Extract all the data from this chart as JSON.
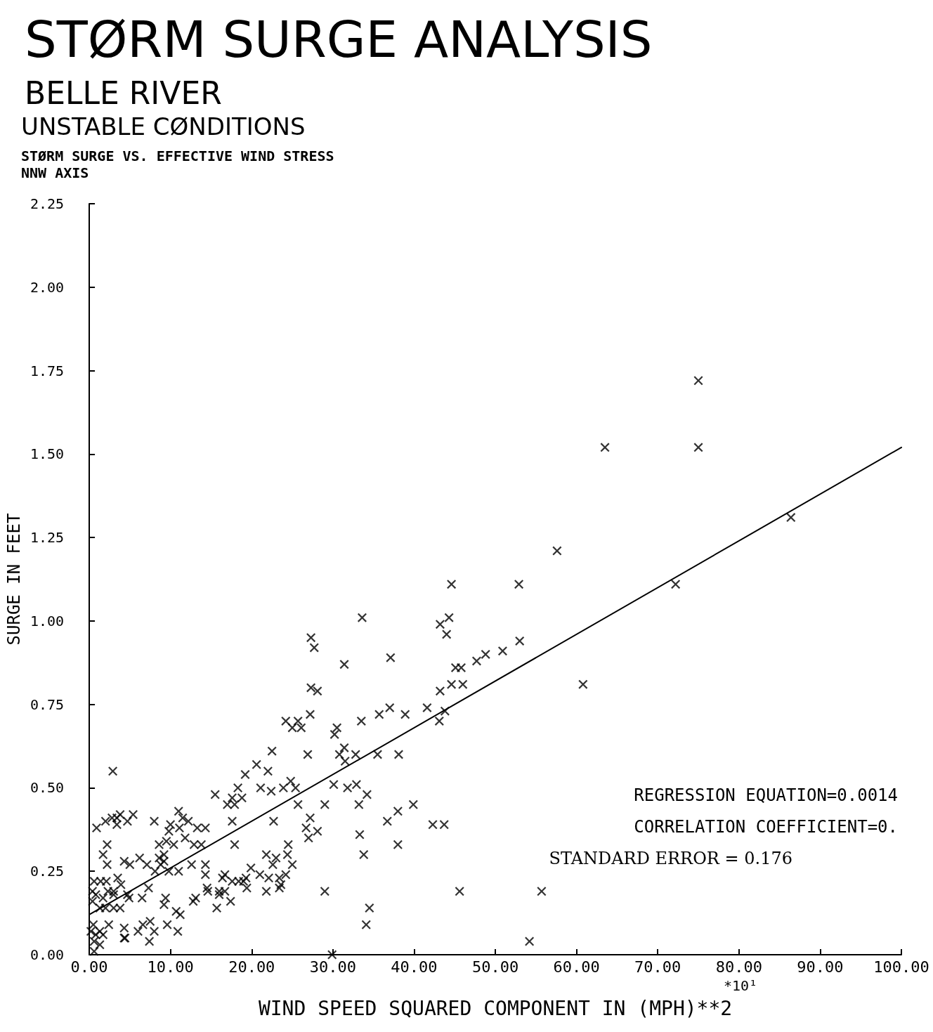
{
  "chart_data": {
    "type": "scatter",
    "title": "STØRM SURGE ANALYSIS",
    "subtitle": "BELLE RIVER",
    "xlabel": "WIND SPEED SQUARED COMPONENT IN (MPH)**2",
    "ylabel": "SURGE IN FEET",
    "annotations": [
      "UNSTABLE CØNDITIONS",
      "STØRM SURGE VS. EFFECTIVE WIND STRESS",
      "NNW AXIS",
      "REGRESSION EQUATION=0.0014",
      "CORRELATION COEFFICIENT=0.",
      "STANDARD ERROR = 0.176",
      "*10¹"
    ],
    "xlim": [
      0,
      100
    ],
    "ylim": [
      0,
      2.25
    ],
    "xticks": [
      {
        "value": 0,
        "label": "0.00"
      },
      {
        "value": 10,
        "label": "10.00"
      },
      {
        "value": 20,
        "label": "20.00"
      },
      {
        "value": 30,
        "label": "30.00"
      },
      {
        "value": 40,
        "label": "40.00"
      },
      {
        "value": 50,
        "label": "50.00"
      },
      {
        "value": 60,
        "label": "60.00"
      },
      {
        "value": 70,
        "label": "70.00"
      },
      {
        "value": 80,
        "label": "80.00"
      },
      {
        "value": 90,
        "label": "90.00"
      },
      {
        "value": 100,
        "label": "100.00"
      }
    ],
    "yticks": [
      {
        "value": 0,
        "label": "0.00"
      },
      {
        "value": 0.25,
        "label": "0.25"
      },
      {
        "value": 0.5,
        "label": "0.50"
      },
      {
        "value": 0.75,
        "label": "0.75"
      },
      {
        "value": 1,
        "label": "1.00"
      },
      {
        "value": 1.25,
        "label": "1.25"
      },
      {
        "value": 1.5,
        "label": "1.50"
      },
      {
        "value": 1.75,
        "label": "1.75"
      },
      {
        "value": 2,
        "label": "2.00"
      },
      {
        "value": 2.25,
        "label": "2.25"
      }
    ],
    "grid": false,
    "series": [
      {
        "color": "#000000",
        "marker": "cross",
        "x": [
          86.4,
          75.0,
          75.0,
          72.2,
          63.5,
          60.8,
          57.6,
          55.7,
          52.9,
          53.0,
          54.2,
          50.9,
          48.8,
          47.7,
          45.8,
          45.1,
          46.0,
          44.6,
          43.2,
          44.3,
          43.2,
          44.0,
          44.6,
          43.8,
          43.1,
          41.6,
          38.9,
          37.0,
          35.7,
          33.5,
          37.1,
          33.6,
          31.4,
          27.3,
          27.7,
          27.3,
          28.1,
          27.2,
          38.1,
          35.5,
          32.8,
          31.4,
          30.8,
          31.5,
          30.5,
          30.2,
          26.9,
          32.9,
          31.8,
          30.1,
          34.2,
          39.9,
          43.7,
          42.3,
          38.0,
          38.0,
          36.7,
          33.2,
          33.3,
          33.8,
          34.5,
          34.1,
          45.6,
          29.0,
          29.0,
          28.1,
          27.2,
          26.7,
          27.0,
          25.7,
          26.1,
          25.0,
          24.2,
          24.8,
          25.4,
          23.9,
          24.5,
          24.4,
          25.0,
          24.2,
          23.6,
          22.4,
          21.1,
          22.0,
          20.6,
          19.2,
          18.3,
          18.8,
          17.9,
          17.6,
          17.0,
          15.5,
          22.7,
          17.6,
          23.4,
          23.4,
          23.0,
          22.6,
          21.8,
          22.1,
          21.8,
          21.0,
          19.9,
          19.3,
          19.4,
          19.0,
          18.4,
          17.6,
          17.9,
          16.7,
          16.4,
          16.7,
          16.0,
          16.0,
          17.4,
          15.7,
          14.5,
          14.6,
          13.1,
          12.8,
          14.3,
          14.3,
          12.6,
          14.3,
          13.3,
          13.8,
          12.9,
          12.2,
          11.5,
          11.0,
          11.8,
          11.1,
          10.0,
          9.8,
          10.4,
          9.5,
          8.6,
          9.2,
          9.2,
          8.6,
          8.8,
          11.0,
          9.8,
          8.1,
          7.1,
          6.2,
          5.0,
          4.3,
          8.0,
          7.3,
          6.5,
          9.4,
          9.2,
          10.7,
          11.2,
          10.9,
          9.6,
          8.0,
          7.4,
          7.5,
          6.6,
          6.0,
          4.3,
          4.4,
          5.4,
          4.7,
          3.8,
          3.4,
          3.4,
          2.8,
          2.0,
          0.9,
          2.9,
          2.2,
          1.7,
          2.2,
          3.5,
          3.9,
          3.0,
          3.0,
          2.1,
          2.3,
          1.7,
          1.4,
          0.6,
          4.7,
          4.9,
          3.8,
          3.0,
          2.0,
          1.3,
          0.8,
          0.4,
          0.4,
          2.4,
          0.5,
          1.3,
          0.8,
          1.3,
          0.2,
          0.6,
          0.6,
          1.7,
          4.3,
          29.9,
          25.7,
          22.5
        ],
        "values": [
          1.31,
          1.72,
          1.52,
          1.11,
          1.52,
          0.81,
          1.21,
          0.19,
          1.11,
          0.94,
          0.04,
          0.91,
          0.9,
          0.88,
          0.86,
          0.86,
          0.81,
          0.81,
          0.79,
          1.01,
          0.99,
          0.96,
          1.11,
          0.73,
          0.7,
          0.74,
          0.72,
          0.74,
          0.72,
          0.7,
          0.89,
          1.01,
          0.87,
          0.95,
          0.92,
          0.8,
          0.79,
          0.72,
          0.6,
          0.6,
          0.6,
          0.62,
          0.6,
          0.58,
          0.68,
          0.66,
          0.6,
          0.51,
          0.5,
          0.51,
          0.48,
          0.45,
          0.39,
          0.39,
          0.43,
          0.33,
          0.4,
          0.45,
          0.36,
          0.3,
          0.14,
          0.09,
          0.19,
          0.19,
          0.45,
          0.37,
          0.41,
          0.38,
          0.35,
          0.7,
          0.68,
          0.68,
          0.7,
          0.52,
          0.5,
          0.5,
          0.33,
          0.3,
          0.27,
          0.24,
          0.21,
          0.49,
          0.5,
          0.55,
          0.57,
          0.54,
          0.5,
          0.47,
          0.45,
          0.47,
          0.45,
          0.48,
          0.4,
          0.4,
          0.23,
          0.2,
          0.29,
          0.27,
          0.3,
          0.23,
          0.19,
          0.24,
          0.26,
          0.23,
          0.2,
          0.22,
          0.22,
          0.22,
          0.33,
          0.24,
          0.23,
          0.19,
          0.19,
          0.18,
          0.16,
          0.14,
          0.2,
          0.19,
          0.17,
          0.16,
          0.27,
          0.24,
          0.27,
          0.38,
          0.38,
          0.33,
          0.33,
          0.4,
          0.41,
          0.43,
          0.35,
          0.38,
          0.39,
          0.37,
          0.33,
          0.34,
          0.33,
          0.3,
          0.28,
          0.29,
          0.27,
          0.25,
          0.25,
          0.25,
          0.27,
          0.29,
          0.27,
          0.28,
          0.4,
          0.2,
          0.17,
          0.17,
          0.15,
          0.13,
          0.12,
          0.07,
          0.09,
          0.07,
          0.04,
          0.1,
          0.09,
          0.07,
          0.08,
          0.05,
          0.42,
          0.4,
          0.42,
          0.41,
          0.39,
          0.41,
          0.4,
          0.38,
          0.55,
          0.33,
          0.3,
          0.27,
          0.23,
          0.21,
          0.19,
          0.18,
          0.22,
          0.19,
          0.17,
          0.22,
          0.22,
          0.18,
          0.17,
          0.14,
          0.14,
          0.14,
          0.14,
          0.18,
          0.16,
          0.19,
          0.09,
          0.09,
          0.07,
          0.06,
          0.03,
          0.07,
          0.04,
          0.01,
          0.06,
          0.05,
          0,
          0.45,
          0.61
        ]
      },
      {
        "type": "line",
        "color": "#000000",
        "marker": "none",
        "line_style": "solid",
        "x": [
          0,
          100
        ],
        "values": [
          0.12,
          1.52
        ]
      }
    ]
  }
}
